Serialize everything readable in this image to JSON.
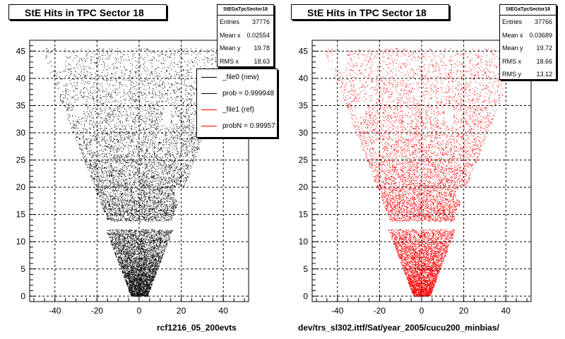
{
  "chart_data": [
    {
      "type": "scatter",
      "title": "StE Hits in TPC Sector 18",
      "xlim": [
        -52,
        52
      ],
      "ylim": [
        -1,
        47
      ],
      "x_ticks": [
        -40,
        -20,
        0,
        20,
        40
      ],
      "y_ticks": [
        0,
        5,
        10,
        15,
        20,
        25,
        30,
        35,
        40,
        45
      ],
      "grid": true,
      "marker_color": "#000000",
      "stats": {
        "name": "StEGaTpcSector18",
        "rows": [
          {
            "label": "Entries",
            "value": "37776"
          },
          {
            "label": "Mean x",
            "value": "0.02554"
          },
          {
            "label": "Mean y",
            "value": "19.78"
          },
          {
            "label": "RMS x",
            "value": "18.63"
          }
        ]
      },
      "legend": {
        "entries": [
          {
            "label": "_file0 (new)",
            "color": "#000000"
          },
          {
            "label": "prob = 0.999948",
            "color": "#000000"
          },
          {
            "label": "_file1 (ref)",
            "color": "#ff0000"
          },
          {
            "label": "probN = 0.99957",
            "color": "#ff0000"
          }
        ]
      },
      "footer": "rcf1216_05_200evts"
    },
    {
      "type": "scatter",
      "title": "StE Hits in TPC Sector 18",
      "xlim": [
        -52,
        52
      ],
      "ylim": [
        -1,
        47
      ],
      "x_ticks": [
        -40,
        -20,
        0,
        20,
        40
      ],
      "y_ticks": [
        0,
        5,
        10,
        15,
        20,
        25,
        30,
        35,
        40,
        45
      ],
      "grid": true,
      "marker_color": "#ff0000",
      "stats": {
        "name": "StEGaTpcSector18",
        "rows": [
          {
            "label": "Entries",
            "value": "37766"
          },
          {
            "label": "Mean x",
            "value": "0.03689"
          },
          {
            "label": "Mean y",
            "value": "19.72"
          },
          {
            "label": "RMS x",
            "value": "18.66"
          },
          {
            "label": "RMS y",
            "value": "13.12"
          }
        ]
      },
      "footer": "dev/trs_sl302.ittf/Sat/year_2005/cucu200_minbias/"
    }
  ]
}
